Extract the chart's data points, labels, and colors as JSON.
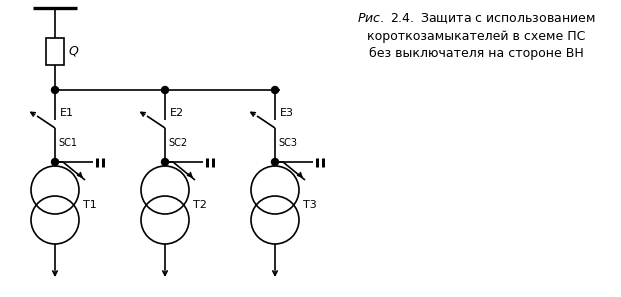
{
  "bg_color": "#ffffff",
  "line_color": "#000000",
  "E_labels": [
    "E1",
    "E2",
    "E3"
  ],
  "SC_labels": [
    "SC1",
    "SC2",
    "SC3"
  ],
  "T_labels": [
    "T1",
    "T2",
    "T3"
  ],
  "caption_bold_italic": "Рис. 2.4.",
  "caption_line1_rest": " Защита с использованием",
  "caption_line2": "короткозамыкателей в схеме ПС",
  "caption_line3": "без выключателя на стороне ВН",
  "fig_width": 6.21,
  "fig_height": 2.97,
  "dpi": 100
}
